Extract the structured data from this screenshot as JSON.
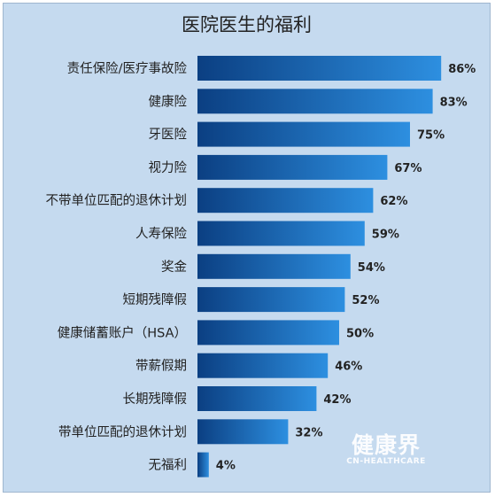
{
  "chart_data": {
    "type": "bar",
    "orientation": "horizontal",
    "title": "医院医生的福利",
    "categories": [
      "责任保险/医疗事故险",
      "健康险",
      "牙医险",
      "视力险",
      "不带单位匹配的退休计划",
      "人寿保险",
      "奖金",
      "短期残障假",
      "健康储蓄账户（HSA）",
      "带薪假期",
      "长期残障假",
      "带单位匹配的退休计划",
      "无福利"
    ],
    "values": [
      86,
      83,
      75,
      67,
      62,
      59,
      54,
      52,
      50,
      46,
      42,
      32,
      4
    ],
    "value_labels": [
      "86%",
      "83%",
      "75%",
      "67%",
      "62%",
      "59%",
      "54%",
      "52%",
      "50%",
      "46%",
      "42%",
      "32%",
      "4%"
    ],
    "unit": "%",
    "xlim": [
      0,
      100
    ],
    "grid": false,
    "legend": "none",
    "colors": {
      "bar_dark": "#0b3f82",
      "bar_light": "#2d8fe0",
      "background": "#c5daef"
    }
  },
  "watermark": {
    "main": "健康界",
    "sub": "CN-HEALTHCARE"
  }
}
